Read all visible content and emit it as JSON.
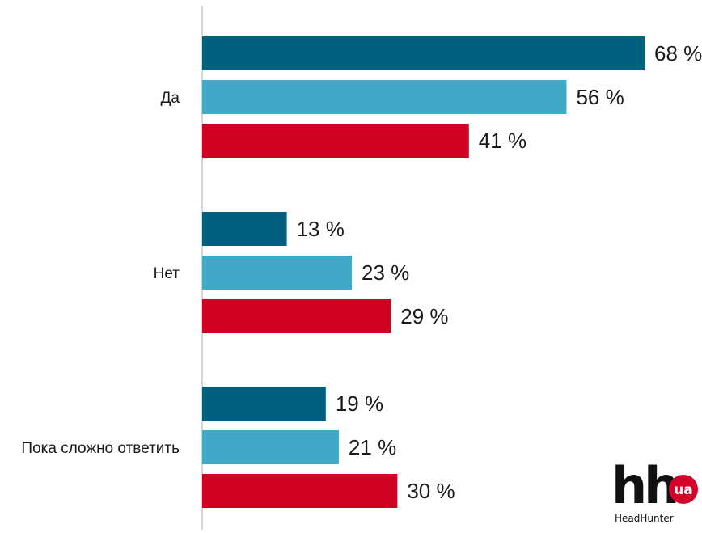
{
  "chart_data": {
    "type": "bar",
    "orientation": "horizontal",
    "categories": [
      "Да",
      "Нет",
      "Пока сложно ответить"
    ],
    "series": [
      {
        "color": "#00617f",
        "values": [
          68,
          13,
          19
        ]
      },
      {
        "color": "#41a9c8",
        "values": [
          56,
          23,
          21
        ]
      },
      {
        "color": "#d00023",
        "values": [
          41,
          29,
          30
        ]
      }
    ],
    "value_labels": [
      [
        "68 %",
        "13 %",
        "19 %"
      ],
      [
        "56 %",
        "23 %",
        "21 %"
      ],
      [
        "41 %",
        "29 %",
        "30 %"
      ]
    ],
    "xlim": [
      0,
      70
    ],
    "grid": false,
    "legend": "none"
  },
  "logo": {
    "mark": "hh",
    "badge": "ua",
    "tagline": "HeadHunter",
    "colors": {
      "text": "#111111",
      "badge": "#d4002a"
    }
  }
}
